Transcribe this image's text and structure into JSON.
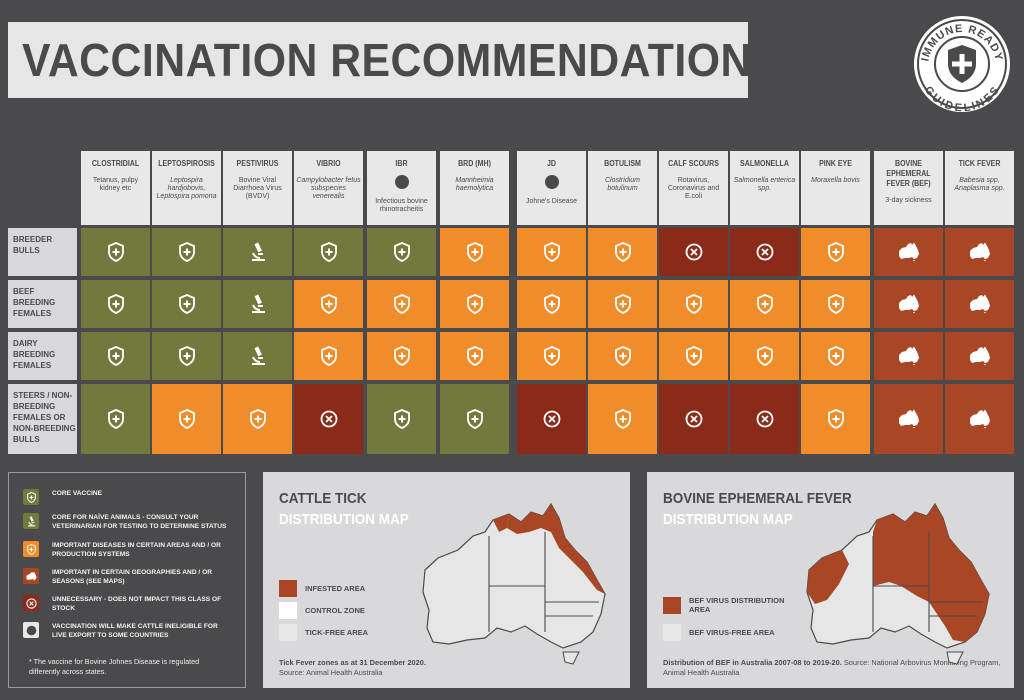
{
  "title": "VACCINATION RECOMMENDATIONS",
  "badge": {
    "top": "IMMUNE READY",
    "bottom": "GUIDELINES"
  },
  "colors": {
    "core": "#73783c",
    "important": "#f08c29",
    "geography": "#a84626",
    "unnecessary": "#8a2b1a",
    "bg": "#4a4a4c",
    "light": "#e8e8e8"
  },
  "diseases": [
    {
      "name": "CLOSTRIDIAL",
      "sub": "Tetanus, pulpy kidney etc",
      "italic": false,
      "globe": false
    },
    {
      "name": "LEPTOSPIROSIS",
      "sub": "Leptospira hardjobovis, Leptospira pomona",
      "italic": true,
      "globe": false
    },
    {
      "name": "PESTIVIRUS",
      "sub": "Bovine Viral Diarrhoea Virus (BVDV)",
      "italic": false,
      "globe": false
    },
    {
      "name": "VIBRIO",
      "sub": "Campylobacter fetus subspecies venerealis",
      "italic": true,
      "globe": false
    },
    {
      "name": "IBR",
      "sub": "Infectious bovine rhinotracheitis",
      "italic": false,
      "globe": true
    },
    {
      "name": "BRD (MH)",
      "sub": "Mannheimia haemolytica",
      "italic": true,
      "globe": false
    },
    {
      "name": "JD",
      "sub": "Johne's Disease",
      "italic": false,
      "globe": true
    },
    {
      "name": "BOTULISM",
      "sub": "Clostridium botulinum",
      "italic": true,
      "globe": false
    },
    {
      "name": "CALF SCOURS",
      "sub": "Rotavirus, Coronavirus and E.coli",
      "italic": false,
      "globe": false
    },
    {
      "name": "SALMONELLA",
      "sub": "Salmonella enterica spp.",
      "italic": true,
      "globe": false
    },
    {
      "name": "PINK EYE",
      "sub": "Moraxella bovis",
      "italic": true,
      "globe": false
    },
    {
      "name": "BOVINE EPHEMERAL FEVER (BEF)",
      "sub": "3-day sickness",
      "italic": false,
      "globe": false
    },
    {
      "name": "TICK FEVER",
      "sub": "Babesia spp, Anaplasma spp.",
      "italic": true,
      "globe": false
    }
  ],
  "rows": [
    {
      "label": "BREEDER BULLS",
      "cells": [
        "core",
        "core",
        "naive",
        "core",
        "core",
        "imp",
        "imp",
        "imp",
        "unn",
        "unn",
        "imp",
        "geo",
        "geo"
      ]
    },
    {
      "label": "BEEF BREEDING FEMALES",
      "cells": [
        "core",
        "core",
        "naive",
        "imp",
        "imp",
        "imp",
        "imp",
        "imp",
        "imp",
        "imp",
        "imp",
        "geo",
        "geo"
      ]
    },
    {
      "label": "DAIRY BREEDING FEMALES",
      "cells": [
        "core",
        "core",
        "naive",
        "imp",
        "imp",
        "imp",
        "imp",
        "imp",
        "imp",
        "imp",
        "imp",
        "geo",
        "geo"
      ]
    },
    {
      "label": "STEERS / NON-BREEDING FEMALES OR NON-BREEDING BULLS",
      "cells": [
        "core",
        "imp",
        "imp",
        "unn",
        "core",
        "core",
        "unn",
        "imp",
        "unn",
        "unn",
        "imp",
        "geo",
        "geo"
      ]
    }
  ],
  "legend": [
    {
      "type": "core",
      "text": "CORE VACCINE"
    },
    {
      "type": "naive",
      "text": "CORE FOR NAÏVE ANIMALS - CONSULT YOUR VETERINARIAN FOR TESTING TO DETERMINE STATUS"
    },
    {
      "type": "imp",
      "text": "IMPORTANT DISEASES IN CERTAIN AREAS AND / OR PRODUCTION SYSTEMS"
    },
    {
      "type": "geo",
      "text": "IMPORTANT IN CERTAIN GEOGRAPHIES AND / OR SEASONS (SEE MAPS)"
    },
    {
      "type": "unn",
      "text": "UNNECESSARY - DOES NOT IMPACT THIS CLASS OF STOCK"
    },
    {
      "type": "globe",
      "text": "VACCINATION WILL MAKE CATTLE INELIGIBLE FOR LIVE EXPORT TO SOME COUNTRIES"
    }
  ],
  "legend_note": "* The vaccine for Bovine Johnes Disease is regulated differently across states.",
  "map_tick": {
    "title1": "CATTLE TICK",
    "title2": "DISTRIBUTION MAP",
    "legend": [
      "INFESTED AREA",
      "CONTROL ZONE",
      "TICK-FREE AREA"
    ],
    "note_bold": "Tick Fever zones as at 31 December 2020.",
    "note": "Source: Animal Health Australia"
  },
  "map_bef": {
    "title1": "BOVINE EPHEMERAL FEVER",
    "title2": "DISTRIBUTION MAP",
    "legend": [
      "BEF VIRUS DISTRIBUTION AREA",
      "BEF VIRUS-FREE AREA"
    ],
    "note_bold": "Distribution of BEF in Australia 2007-08 to 2019-20.",
    "note": "Source: National Arbovirus Monitoring Program, Animal Health Australia"
  }
}
